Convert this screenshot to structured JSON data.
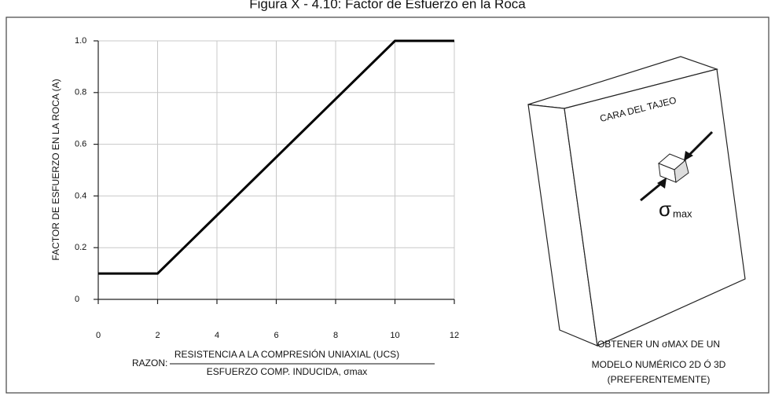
{
  "chart_data": {
    "type": "line",
    "title": "Figura X - 4.10: Factor de Esfuerzo en la Roca",
    "y_label": "FACTOR DE ESFUERZO EN LA ROCA (A)",
    "x_label": {
      "prefix": "RAZON:",
      "numerator": "RESISTENCIA A LA COMPRESIÓN UNIAXIAL (UCS)",
      "denominator": "ESFUERZO COMP. INDUCIDA, σmax"
    },
    "x": [
      0,
      2,
      10,
      12
    ],
    "values": [
      0.1,
      0.1,
      1.0,
      1.0
    ],
    "color": "#000000",
    "xlim": [
      0,
      12
    ],
    "ylim": [
      0,
      1.0
    ],
    "xticks": [
      0,
      2,
      4,
      6,
      8,
      10,
      12
    ],
    "yticks": [
      0,
      0.2,
      0.4,
      0.6,
      0.8,
      {
        "value": 1.0,
        "label": "1.0"
      }
    ],
    "grid": true
  },
  "diagram": {
    "face_label": "CARA DEL TAJEO",
    "sigma": "σ",
    "sigma_sub": "max",
    "caption": [
      "OBTENER UN σMAX DE UN",
      "MODELO NUMÉRICO 2D Ó 3D",
      "(PREFERENTEMENTE)"
    ]
  }
}
